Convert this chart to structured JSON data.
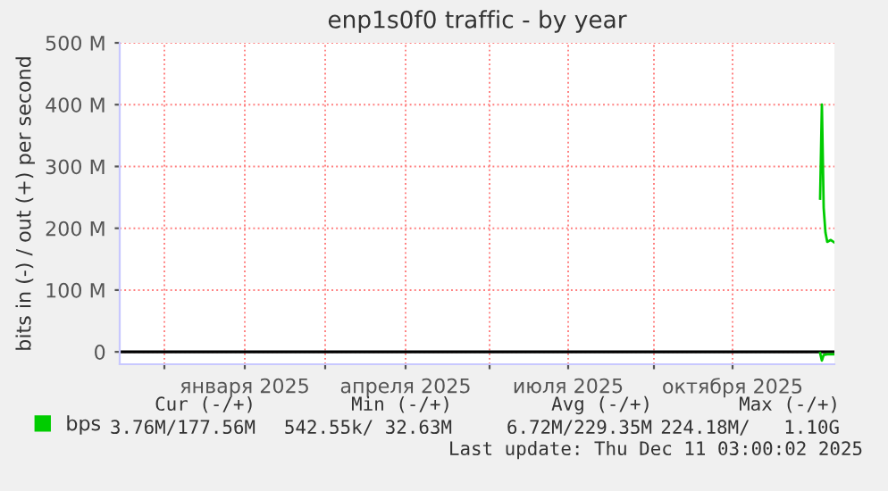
{
  "chart_data": {
    "type": "line",
    "title": "enp1s0f0 traffic - by year",
    "ylabel": "bits in (-) / out (+) per second",
    "xlim": [
      "2024-11-06",
      "2025-12-11"
    ],
    "xticks": [
      {
        "value": "2024-12-01",
        "label": null
      },
      {
        "value": "2025-01-15",
        "label": "января 2025"
      },
      {
        "value": "2025-03-01",
        "label": null
      },
      {
        "value": "2025-04-15",
        "label": "апреля 2025"
      },
      {
        "value": "2025-06-01",
        "label": null
      },
      {
        "value": "2025-07-15",
        "label": "июля 2025"
      },
      {
        "value": "2025-09-01",
        "label": null
      },
      {
        "value": "2025-10-15",
        "label": "октября 2025"
      }
    ],
    "ylim": [
      -20000000,
      500000000
    ],
    "yticks": [
      {
        "value": 0,
        "label": "0"
      },
      {
        "value": 100000000,
        "label": "100 M"
      },
      {
        "value": 200000000,
        "label": "200 M"
      },
      {
        "value": 300000000,
        "label": "300 M"
      },
      {
        "value": 400000000,
        "label": "400 M"
      },
      {
        "value": 500000000,
        "label": "500 M"
      }
    ],
    "series": [
      {
        "name": "bps",
        "color": "#00cc00",
        "x": [
          "2025-12-03",
          "2025-12-04",
          "2025-12-05",
          "2025-12-06",
          "2025-12-07",
          "2025-12-09",
          "2025-12-11"
        ],
        "values": [
          248000000,
          400000000,
          233000000,
          193000000,
          178000000,
          181000000,
          177000000
        ]
      },
      {
        "color": "#00cc00",
        "x": [
          "2025-12-03",
          "2025-12-04",
          "2025-12-05",
          "2025-12-07",
          "2025-12-11"
        ],
        "values": [
          -2000000,
          -14000000,
          -5000000,
          -4000000,
          -4000000
        ]
      }
    ],
    "ref_lines": [
      {
        "axis": "y",
        "value": 0,
        "color": "#000000"
      }
    ],
    "grid": true,
    "legend": "bottom left",
    "annotations": [
      "Cur (-/+)",
      "Min (-/+)",
      "Avg (-/+)",
      "Max (-/+)",
      "3.76M/177.56M",
      "542.55k/ 32.63M",
      "6.72M/229.35M",
      "224.18M/   1.10G",
      "Last update: Thu Dec 11 03:00:02 2025"
    ]
  }
}
